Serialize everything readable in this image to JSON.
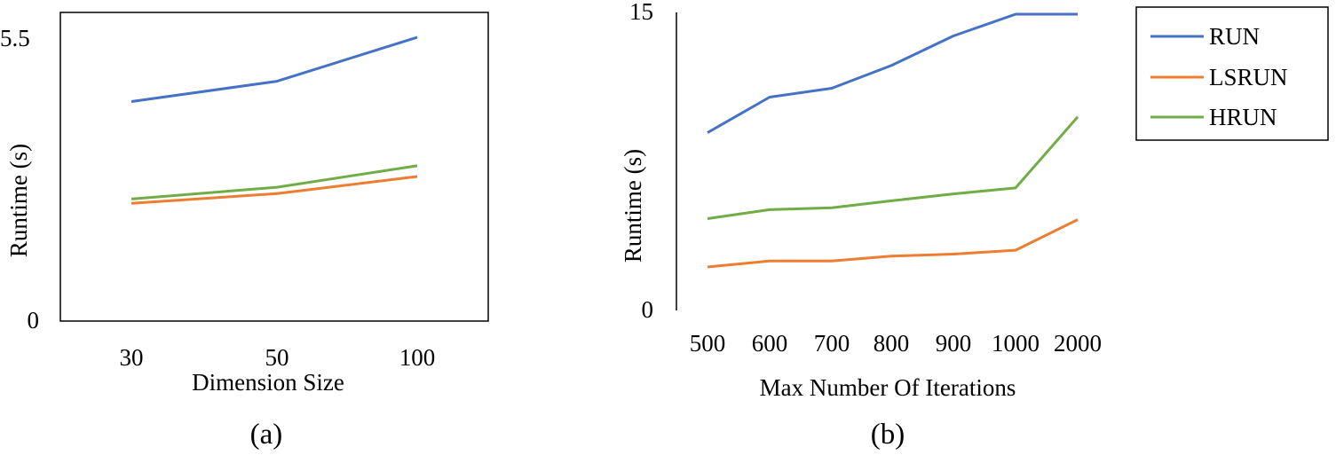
{
  "chart_data": [
    {
      "id": "a",
      "type": "line",
      "xlabel": "Dimension Size",
      "ylabel": "Runtime (s)",
      "categories": [
        "30",
        "50",
        "100"
      ],
      "ylim": [
        0,
        5.5
      ],
      "yticks": [
        "0",
        "5.5"
      ],
      "caption": "(a)",
      "grid": false,
      "series": [
        {
          "name": "RUN",
          "color": "#4472C4",
          "values": [
            4.1,
            4.48,
            5.3
          ]
        },
        {
          "name": "LSRUN",
          "color": "#ED7D31",
          "values": [
            2.2,
            2.38,
            2.7
          ]
        },
        {
          "name": "HRUN",
          "color": "#70AD47",
          "values": [
            2.28,
            2.5,
            2.9
          ]
        }
      ]
    },
    {
      "id": "b",
      "type": "line",
      "xlabel": "Max Number Of Iterations",
      "ylabel": "Runtime (s)",
      "categories": [
        "500",
        "600",
        "700",
        "800",
        "900",
        "1000",
        "2000"
      ],
      "ylim": [
        0,
        15
      ],
      "yticks": [
        "0",
        "15"
      ],
      "caption": "(b)",
      "grid": false,
      "legend": "right",
      "series": [
        {
          "name": "RUN",
          "color": "#4472C4",
          "values": [
            9.0,
            10.8,
            11.25,
            12.4,
            13.9,
            15.0,
            15.0
          ]
        },
        {
          "name": "LSRUN",
          "color": "#ED7D31",
          "values": [
            2.2,
            2.5,
            2.5,
            2.75,
            2.85,
            3.05,
            4.6
          ]
        },
        {
          "name": "HRUN",
          "color": "#70AD47",
          "values": [
            4.65,
            5.1,
            5.2,
            5.55,
            5.9,
            6.2,
            9.8
          ]
        }
      ]
    }
  ]
}
